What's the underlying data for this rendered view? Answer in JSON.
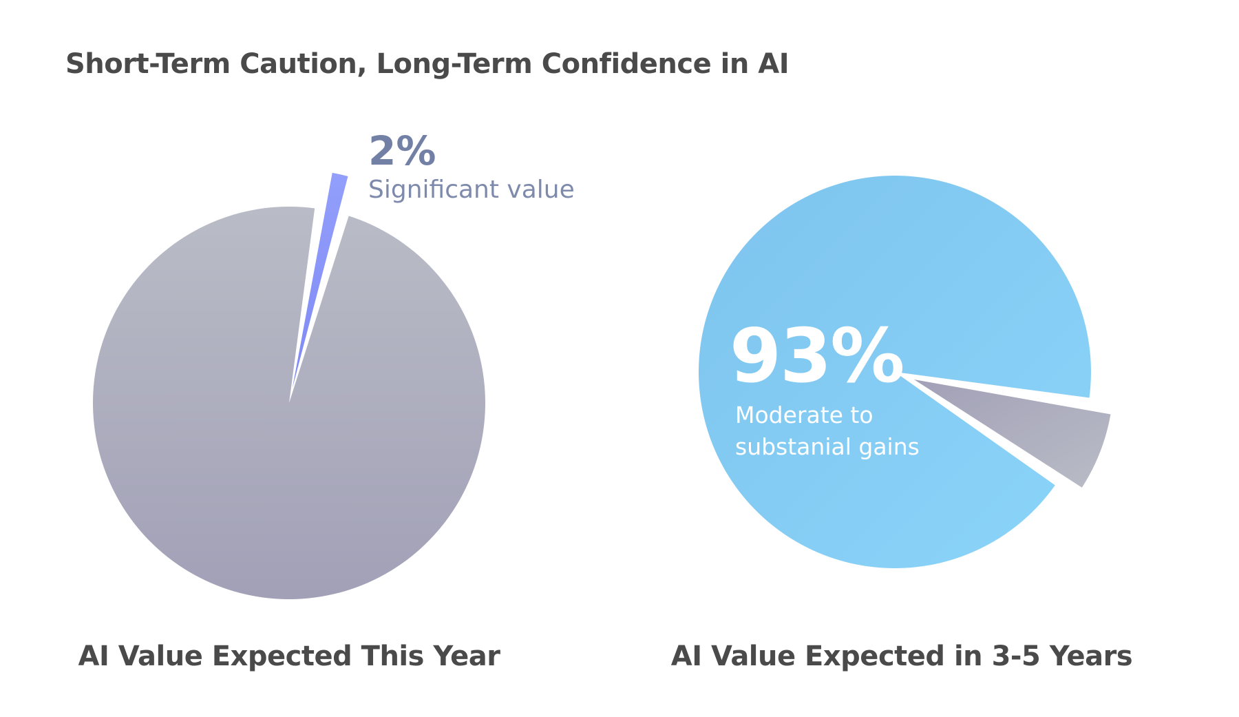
{
  "title": "Short-Term Caution, Long-Term Confidence in AI",
  "colors": {
    "gray_top": "#b9bcc6",
    "gray_bottom": "#a2a0b7",
    "purple_top": "#939ffb",
    "purple_bottom": "#7f89f5",
    "blue_a": "#7ec4ee",
    "blue_b": "#8bd4f9",
    "label_dark": "#7380a6",
    "title_text": "#4a4a4a"
  },
  "chart_data": [
    {
      "type": "pie",
      "title": "AI Value Expected This Year",
      "slices": [
        {
          "label": "Significant value",
          "value": 2,
          "display": "2%",
          "exploded": true
        },
        {
          "label": "",
          "value": 98
        }
      ]
    },
    {
      "type": "pie",
      "title": "AI Value Expected in 3-5 Years",
      "slices": [
        {
          "label": "Moderate to substanial gains",
          "value": 93,
          "display": "93%"
        },
        {
          "label": "",
          "value": 7,
          "exploded": true
        }
      ]
    }
  ]
}
